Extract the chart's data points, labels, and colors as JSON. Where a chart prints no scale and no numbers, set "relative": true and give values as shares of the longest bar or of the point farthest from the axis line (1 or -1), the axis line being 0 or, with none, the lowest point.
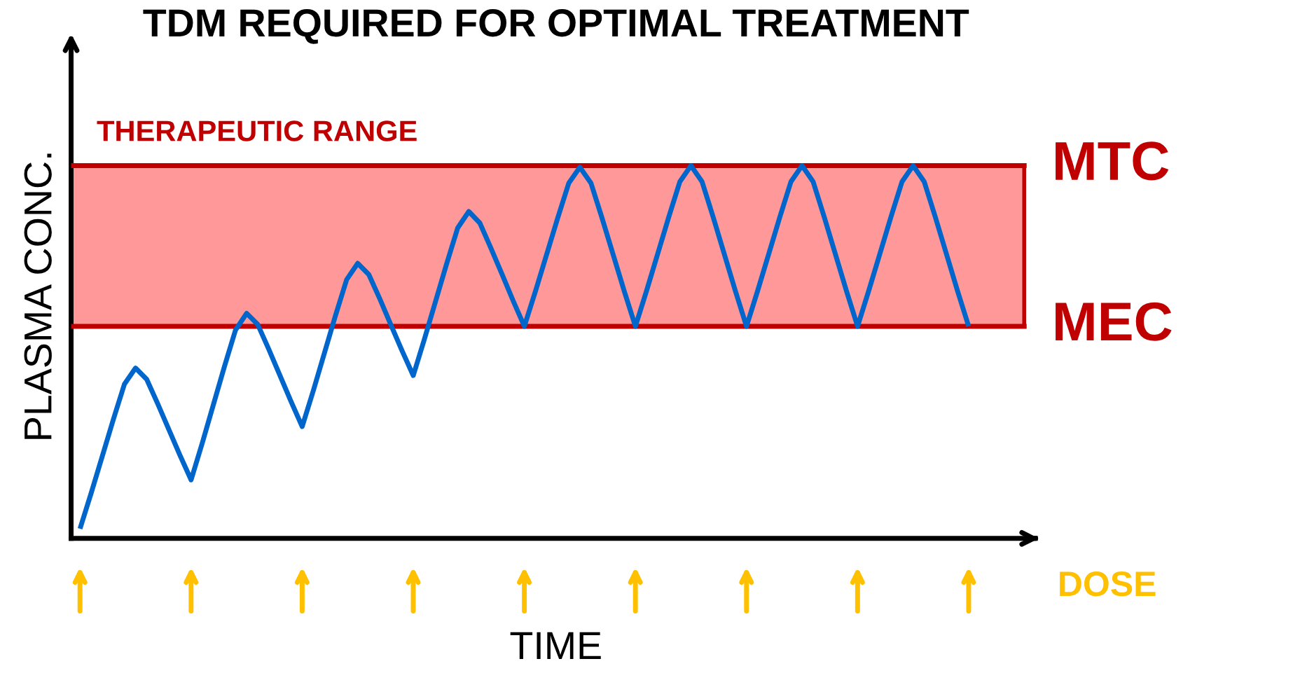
{
  "chart_data": {
    "type": "line",
    "title": "TDM REQUIRED FOR OPTIMAL TREATMENT",
    "xlabel": "TIME",
    "ylabel": "PLASMA CONC.",
    "relative": true,
    "legend": false,
    "marker": "none",
    "line_style": "solid",
    "categories": [
      null,
      null,
      null,
      null,
      null,
      null,
      null,
      null,
      null,
      null,
      null,
      null,
      null,
      null,
      null,
      null,
      null,
      null,
      null,
      null,
      null,
      null,
      null,
      null,
      null,
      null,
      null,
      null,
      null,
      null,
      null,
      null,
      null,
      null,
      null,
      null,
      null,
      null,
      null,
      null,
      null,
      null,
      null,
      null,
      null,
      null,
      null,
      null,
      null,
      null,
      null,
      null,
      null,
      null,
      null,
      null,
      null,
      null,
      null,
      null,
      null,
      null,
      null,
      null,
      null,
      null,
      null,
      null,
      null,
      null,
      null,
      null,
      null,
      null,
      null,
      null,
      null,
      null,
      null,
      null,
      null
    ],
    "series": [
      {
        "color": "#0066cc",
        "values": [
          0.026,
          0.121,
          0.22,
          0.319,
          0.414,
          0.457,
          0.427,
          0.361,
          0.292,
          0.223,
          0.157,
          0.255,
          0.358,
          0.461,
          0.559,
          0.604,
          0.574,
          0.507,
          0.437,
          0.367,
          0.3,
          0.396,
          0.497,
          0.598,
          0.694,
          0.738,
          0.708,
          0.642,
          0.572,
          0.503,
          0.437,
          0.534,
          0.635,
          0.736,
          0.833,
          0.877,
          0.846,
          0.778,
          0.708,
          0.637,
          0.569,
          0.663,
          0.761,
          0.859,
          0.953,
          0.996,
          0.953,
          0.859,
          0.761,
          0.663,
          0.569,
          0.664,
          0.763,
          0.862,
          0.957,
          1.0,
          0.957,
          0.862,
          0.763,
          0.664,
          0.569,
          0.664,
          0.763,
          0.862,
          0.957,
          1.0,
          0.957,
          0.862,
          0.763,
          0.664,
          0.569,
          0.664,
          0.763,
          0.862,
          0.957,
          1.0,
          0.957,
          0.862,
          0.763,
          0.664,
          0.569
        ]
      }
    ],
    "bands": [
      {
        "axis": "y",
        "from": 0.569,
        "to": 1.0,
        "label": "THERAPEUTIC RANGE",
        "color": "#ff9999"
      }
    ],
    "ref_lines": [
      {
        "axis": "y",
        "value": 1.0,
        "label": "MTC",
        "color": "#c00000"
      },
      {
        "axis": "y",
        "value": 0.569,
        "label": "MEC",
        "color": "#c00000"
      }
    ],
    "annotations": [
      {
        "text": "DOSE"
      }
    ]
  }
}
